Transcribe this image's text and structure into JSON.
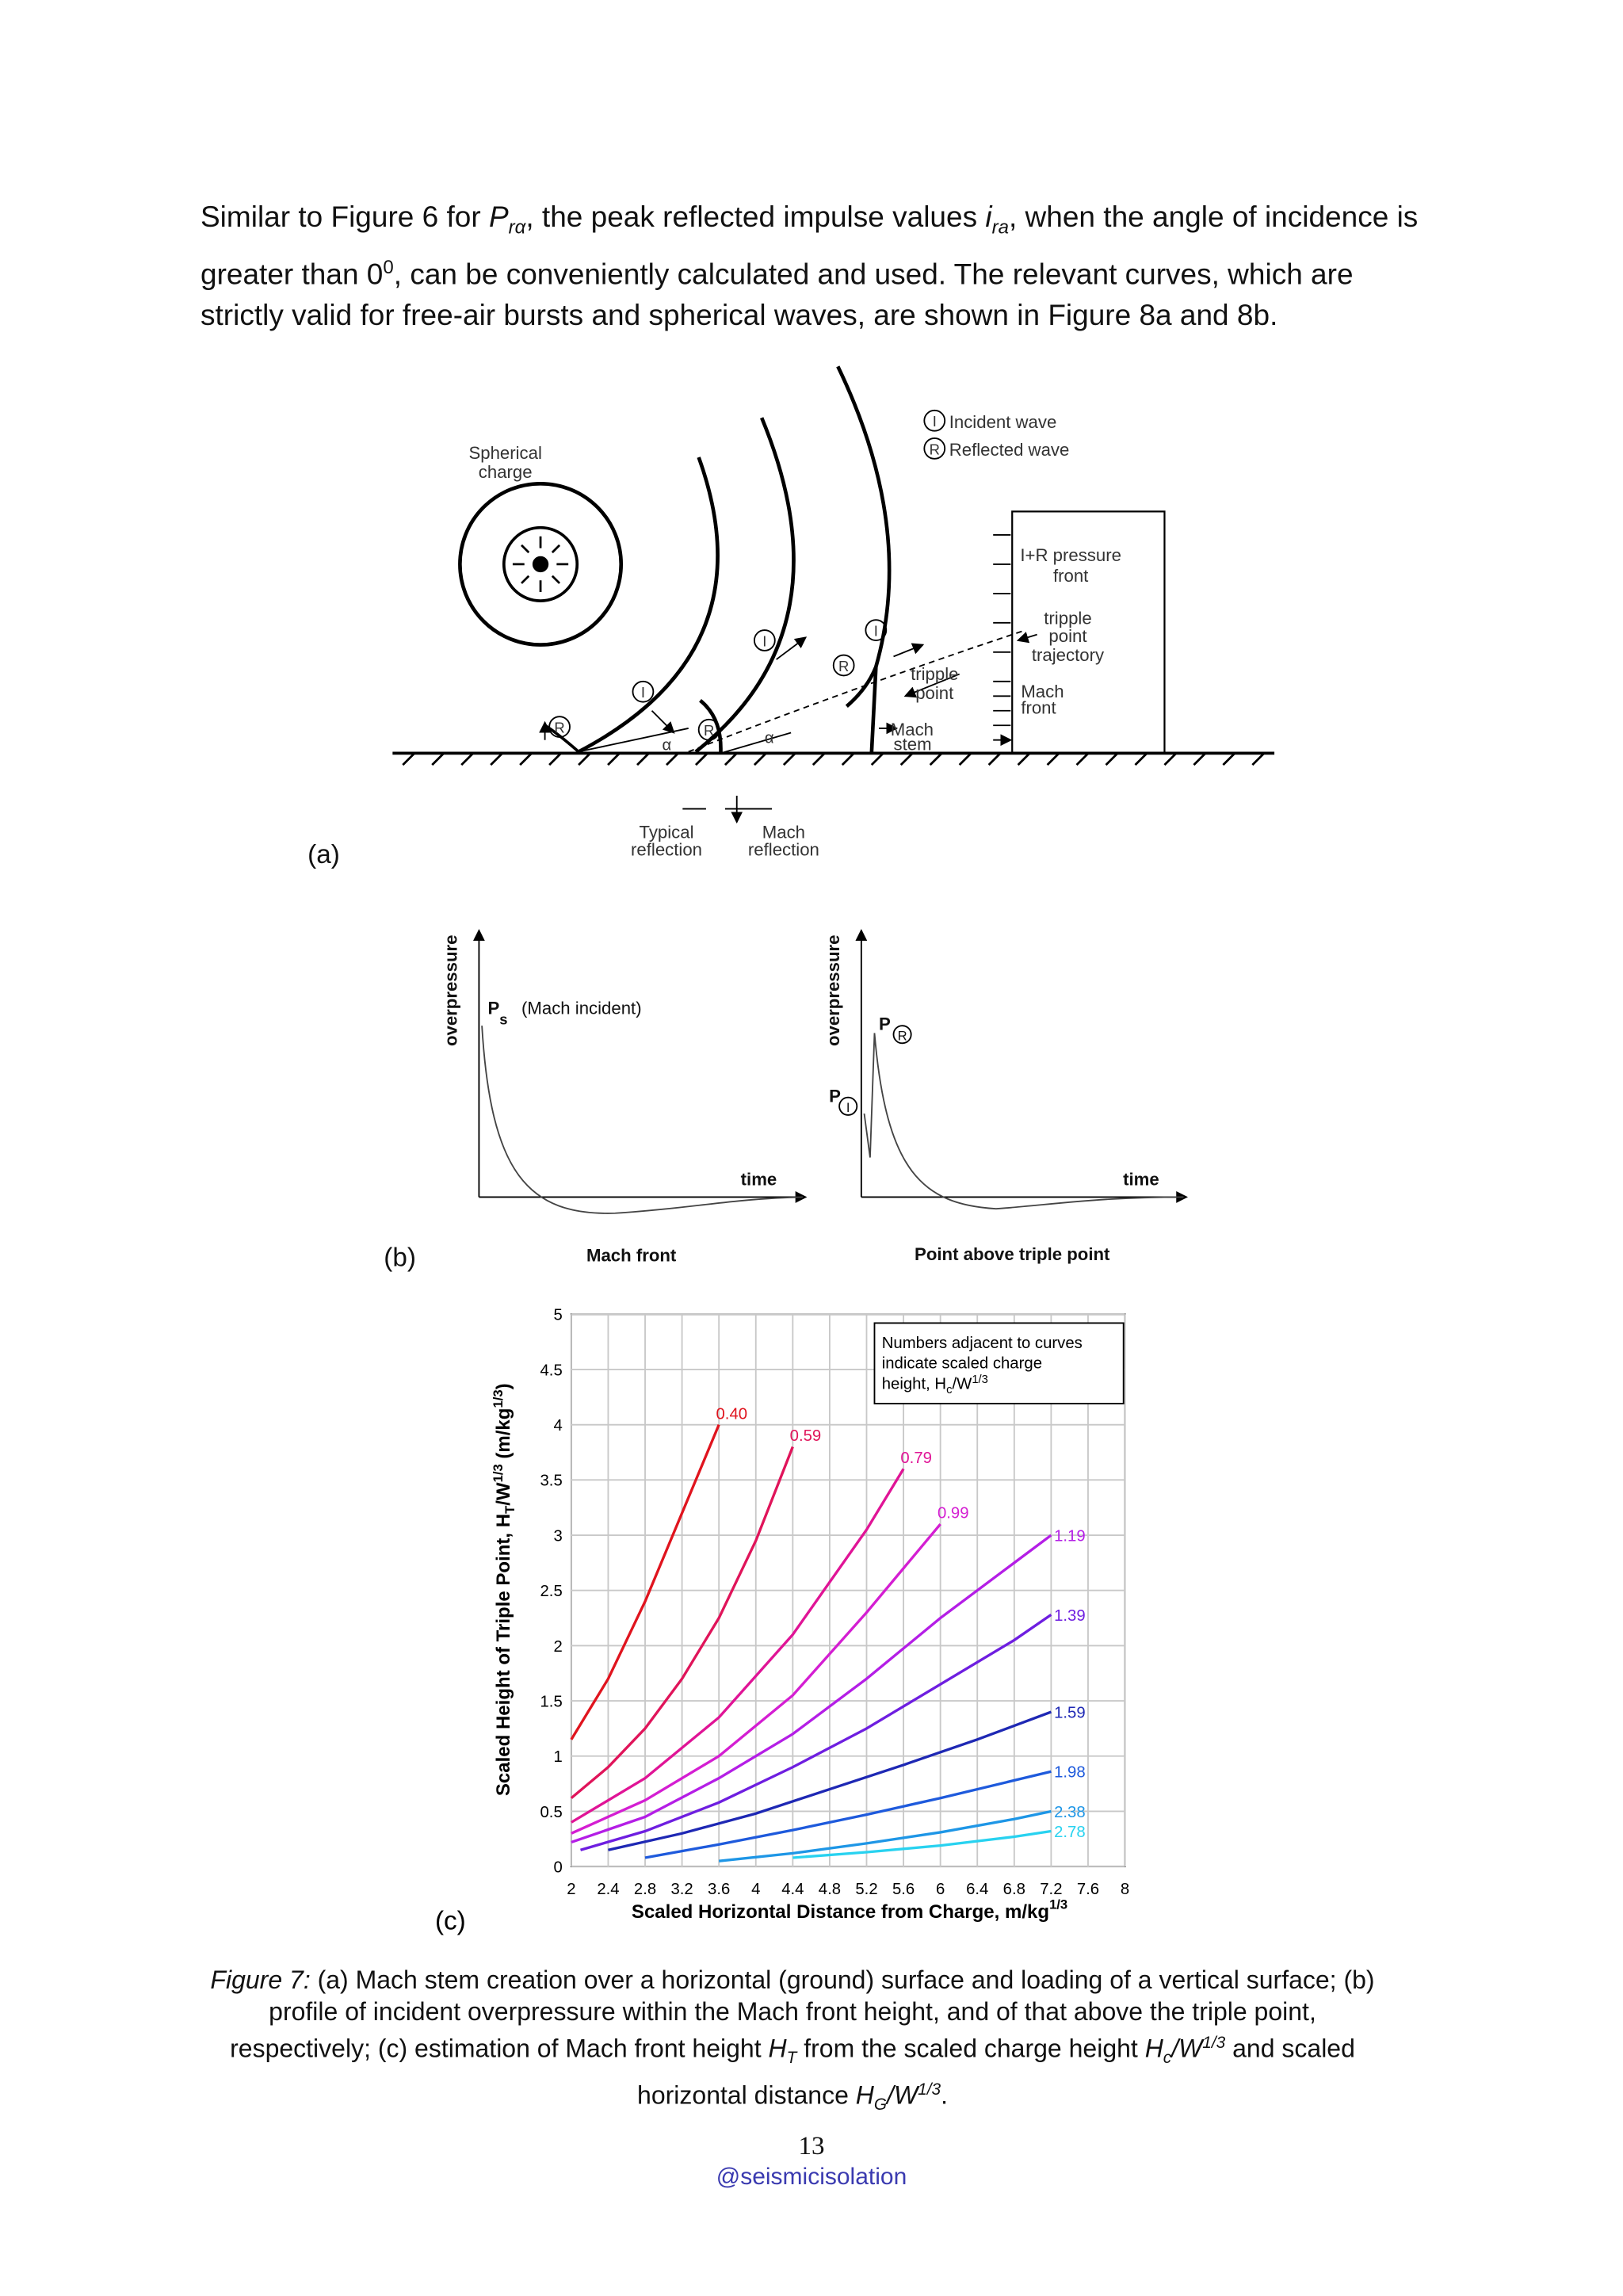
{
  "paragraph": [
    "Similar to Figure 6 for ",
    "P",
    "rα",
    ", the peak reflected impulse values ",
    "i",
    "ra",
    ", when the angle of incidence is greater than 0",
    "0",
    ", can be conveniently calculated and used. The relevant curves, which are strictly valid for free-air bursts and spherical waves, are shown in Figure 8a and 8b."
  ],
  "figure_a": {
    "spherical_charge": [
      "Spherical",
      "charge"
    ],
    "incident_symbol": "I",
    "reflected_symbol": "R",
    "incident_wave": "Incident wave",
    "reflected_wave": "Reflected wave",
    "alpha": "α",
    "ir_front": [
      "I+R pressure",
      "front"
    ],
    "trajectory": [
      "tripple",
      "point",
      "trajectory"
    ],
    "mach_front": [
      "Mach",
      "front"
    ],
    "triple_point": [
      "tripple",
      "point"
    ],
    "mach_stem": [
      "Mach",
      "stem"
    ],
    "typical_reflection": [
      "Typical",
      "reflection"
    ],
    "mach_reflection": [
      "Mach",
      "reflection"
    ],
    "part": "(a)"
  },
  "figure_b": {
    "y_label": "overpressure",
    "x_label": "time",
    "p": "P",
    "s": "s",
    "mach_incident": "(Mach incident)",
    "left_title": "Mach front",
    "right_title": "Point above triple point",
    "part": "(b)"
  },
  "chart_data": {
    "type": "line",
    "part": "(c)",
    "note": [
      "Numbers adjacent to curves",
      "indicate scaled charge",
      "height, H",
      "c",
      "/W",
      "1/3"
    ],
    "y_label": [
      "Scaled Height of Triple Point, H",
      "T",
      "/W",
      "1/3",
      " (m/kg",
      "1/3",
      ")"
    ],
    "x_label": [
      "Scaled Horizontal Distance from Charge, m/kg",
      "1/3"
    ],
    "xlim": [
      2,
      8
    ],
    "xticks": [
      2,
      2.4,
      2.8,
      3.2,
      3.6,
      4,
      4.4,
      4.8,
      5.2,
      5.6,
      6,
      6.4,
      6.8,
      7.2,
      7.6,
      8
    ],
    "ylim": [
      0,
      5
    ],
    "yticks": [
      0,
      0.5,
      1,
      1.5,
      2,
      2.5,
      3,
      3.5,
      4,
      4.5,
      5
    ],
    "grid": true,
    "series": [
      {
        "name": "0.40",
        "color": "#e0141e",
        "x": [
          2,
          2.4,
          2.8,
          3.2,
          3.6
        ],
        "values": [
          1.15,
          1.7,
          2.4,
          3.2,
          4.0
        ]
      },
      {
        "name": "0.59",
        "color": "#e0145a",
        "x": [
          2,
          2.4,
          2.8,
          3.2,
          3.6,
          4.0,
          4.4
        ],
        "values": [
          0.62,
          0.9,
          1.25,
          1.7,
          2.25,
          2.95,
          3.8
        ]
      },
      {
        "name": "0.79",
        "color": "#e01496",
        "x": [
          2,
          2.8,
          3.6,
          4.4,
          5.2,
          5.6
        ],
        "values": [
          0.4,
          0.8,
          1.35,
          2.1,
          3.05,
          3.6
        ]
      },
      {
        "name": "0.99",
        "color": "#d41ed2",
        "x": [
          2,
          2.8,
          3.6,
          4.4,
          5.2,
          6.0
        ],
        "values": [
          0.3,
          0.6,
          1.0,
          1.55,
          2.3,
          3.1
        ]
      },
      {
        "name": "1.19",
        "color": "#b41ee6",
        "x": [
          2,
          2.8,
          3.6,
          4.4,
          5.2,
          6.0,
          6.8,
          7.2
        ],
        "values": [
          0.22,
          0.45,
          0.8,
          1.2,
          1.7,
          2.25,
          2.75,
          3.0
        ]
      },
      {
        "name": "1.39",
        "color": "#6e1ee0",
        "x": [
          2.1,
          2.8,
          3.6,
          4.4,
          5.2,
          6.0,
          6.8,
          7.2
        ],
        "values": [
          0.15,
          0.32,
          0.58,
          0.9,
          1.25,
          1.65,
          2.05,
          2.28
        ]
      },
      {
        "name": "1.59",
        "color": "#1e28b4",
        "x": [
          2.4,
          3.2,
          4.0,
          4.8,
          5.6,
          6.4,
          7.2
        ],
        "values": [
          0.15,
          0.3,
          0.48,
          0.7,
          0.92,
          1.15,
          1.4
        ]
      },
      {
        "name": "1.98",
        "color": "#1e5adc",
        "x": [
          2.8,
          3.6,
          4.4,
          5.2,
          6.0,
          6.8,
          7.2
        ],
        "values": [
          0.08,
          0.2,
          0.33,
          0.47,
          0.62,
          0.78,
          0.86
        ]
      },
      {
        "name": "2.38",
        "color": "#1e96e6",
        "x": [
          3.6,
          4.4,
          5.2,
          6.0,
          6.8,
          7.2
        ],
        "values": [
          0.05,
          0.12,
          0.21,
          0.31,
          0.43,
          0.5
        ]
      },
      {
        "name": "2.78",
        "color": "#28d2f0",
        "x": [
          4.4,
          5.2,
          6.0,
          6.8,
          7.2
        ],
        "values": [
          0.08,
          0.13,
          0.19,
          0.27,
          0.32
        ]
      }
    ]
  },
  "caption": [
    "Figure 7:",
    " (a) Mach stem creation over a horizontal (ground) surface and loading of a vertical surface; (b) profile of incident overpressure within the Mach front height, and of that above the triple point, respectively; (c) estimation of Mach front height ",
    "H",
    "T",
    " from the scaled charge height ",
    "H",
    "c",
    "/W",
    "1/3",
    " and scaled horizontal distance ",
    "H",
    "G",
    "/W",
    "1/3",
    "."
  ],
  "page_number": "13",
  "watermark": "@seismicisolation"
}
